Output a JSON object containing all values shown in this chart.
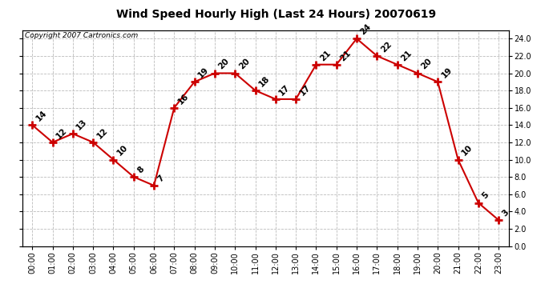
{
  "title": "Wind Speed Hourly High (Last 24 Hours) 20070619",
  "copyright": "Copyright 2007 Cartronics.com",
  "hours": [
    "00:00",
    "01:00",
    "02:00",
    "03:00",
    "04:00",
    "05:00",
    "06:00",
    "07:00",
    "08:00",
    "09:00",
    "10:00",
    "11:00",
    "12:00",
    "13:00",
    "14:00",
    "15:00",
    "16:00",
    "17:00",
    "18:00",
    "19:00",
    "20:00",
    "21:00",
    "22:00",
    "23:00"
  ],
  "values": [
    14,
    12,
    13,
    12,
    10,
    8,
    7,
    16,
    19,
    20,
    20,
    18,
    17,
    17,
    21,
    21,
    24,
    22,
    21,
    20,
    19,
    10,
    5,
    3
  ],
  "line_color": "#cc0000",
  "marker_color": "#cc0000",
  "bg_color": "#ffffff",
  "grid_color": "#bbbbbb",
  "ylim": [
    0.0,
    25.0
  ],
  "yticks": [
    0.0,
    2.0,
    4.0,
    6.0,
    8.0,
    10.0,
    12.0,
    14.0,
    16.0,
    18.0,
    20.0,
    22.0,
    24.0
  ],
  "label_fontsize": 7,
  "title_fontsize": 10,
  "copyright_fontsize": 6.5,
  "annotation_fontsize": 7.5
}
